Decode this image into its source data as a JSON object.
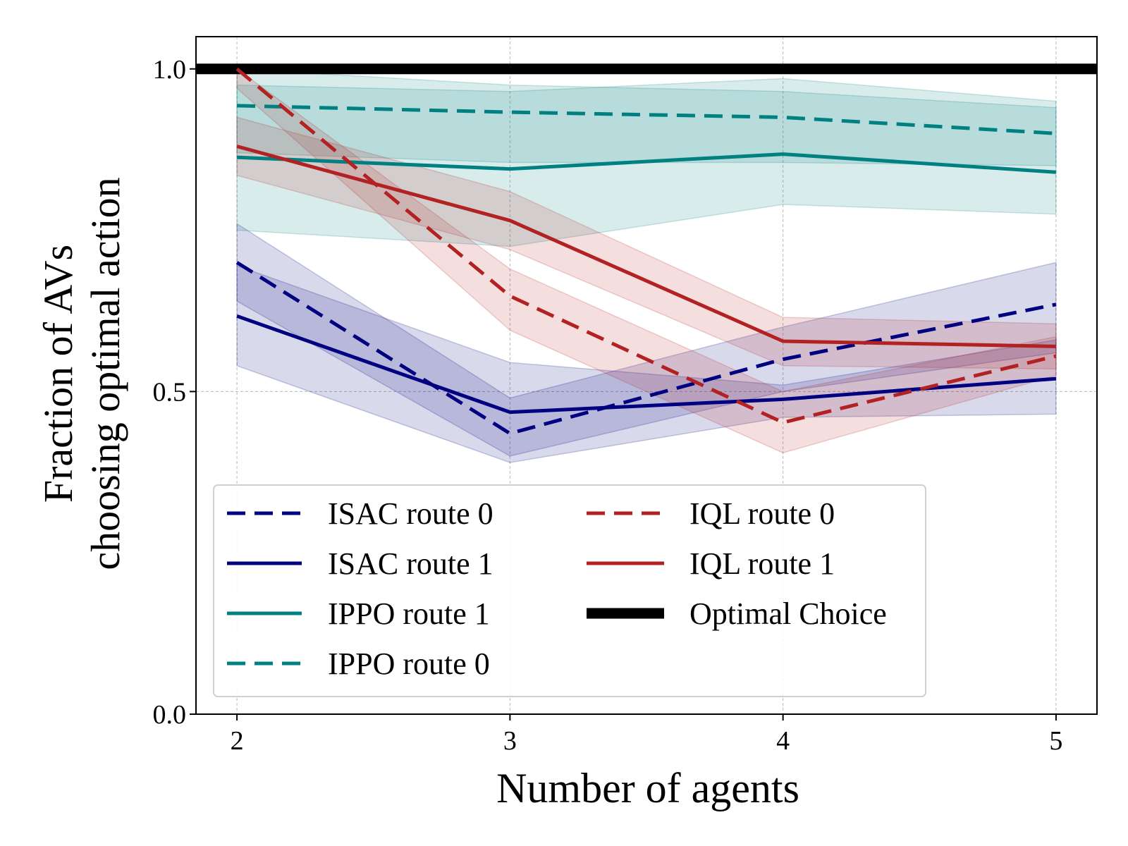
{
  "chart_data": {
    "type": "line",
    "xlabel": "Number of agents",
    "ylabel_lines": [
      "Fraction of AVs",
      "choosing optimal action"
    ],
    "x": [
      2,
      3,
      4,
      5
    ],
    "xticks": [
      "2",
      "3",
      "4",
      "5"
    ],
    "yticks": [
      "0.0",
      "0.5",
      "1.0"
    ],
    "ytick_values": [
      0.0,
      0.5,
      1.0
    ],
    "xlim": [
      1.85,
      5.15
    ],
    "ylim": [
      0.0,
      1.05
    ],
    "grid": true,
    "legend_position": "lower-left",
    "series": [
      {
        "name": "ISAC route 0",
        "color": "#000080",
        "dash": "dashed",
        "values": [
          0.7,
          0.435,
          0.55,
          0.635
        ],
        "lower": [
          0.64,
          0.4,
          0.5,
          0.56
        ],
        "upper": [
          0.76,
          0.49,
          0.6,
          0.7
        ]
      },
      {
        "name": "ISAC route 1",
        "color": "#000080",
        "dash": "solid",
        "values": [
          0.617,
          0.468,
          0.488,
          0.52
        ],
        "lower": [
          0.54,
          0.39,
          0.46,
          0.465
        ],
        "upper": [
          0.695,
          0.545,
          0.51,
          0.58
        ]
      },
      {
        "name": "IPPO route 1",
        "color": "#008080",
        "dash": "solid",
        "values": [
          0.863,
          0.845,
          0.868,
          0.84
        ],
        "lower": [
          0.75,
          0.725,
          0.79,
          0.775
        ],
        "upper": [
          0.975,
          0.965,
          0.985,
          0.95
        ]
      },
      {
        "name": "IPPO route 0",
        "color": "#008080",
        "dash": "dashed",
        "values": [
          0.943,
          0.933,
          0.925,
          0.9
        ],
        "lower": [
          0.87,
          0.855,
          0.855,
          0.85
        ],
        "upper": [
          1.0,
          0.975,
          0.965,
          0.94
        ]
      },
      {
        "name": "IQL route 0",
        "color": "#B22222",
        "dash": "dashed",
        "values": [
          1.0,
          0.648,
          0.452,
          0.555
        ],
        "lower": [
          0.97,
          0.595,
          0.405,
          0.525
        ],
        "upper": [
          1.0,
          0.69,
          0.5,
          0.585
        ]
      },
      {
        "name": "IQL route 1",
        "color": "#B22222",
        "dash": "solid",
        "values": [
          0.88,
          0.765,
          0.578,
          0.57
        ],
        "lower": [
          0.835,
          0.72,
          0.54,
          0.535
        ],
        "upper": [
          0.925,
          0.81,
          0.615,
          0.605
        ]
      },
      {
        "name": "Optimal Choice",
        "color": "#000000",
        "dash": "thick",
        "values": [
          1.0,
          1.0,
          1.0,
          1.0
        ]
      }
    ],
    "legend_columns": [
      [
        "ISAC route 0",
        "ISAC route 1",
        "IPPO route 1",
        "IPPO route 0"
      ],
      [
        "IQL route 0",
        "IQL route 1",
        "Optimal Choice"
      ]
    ]
  }
}
